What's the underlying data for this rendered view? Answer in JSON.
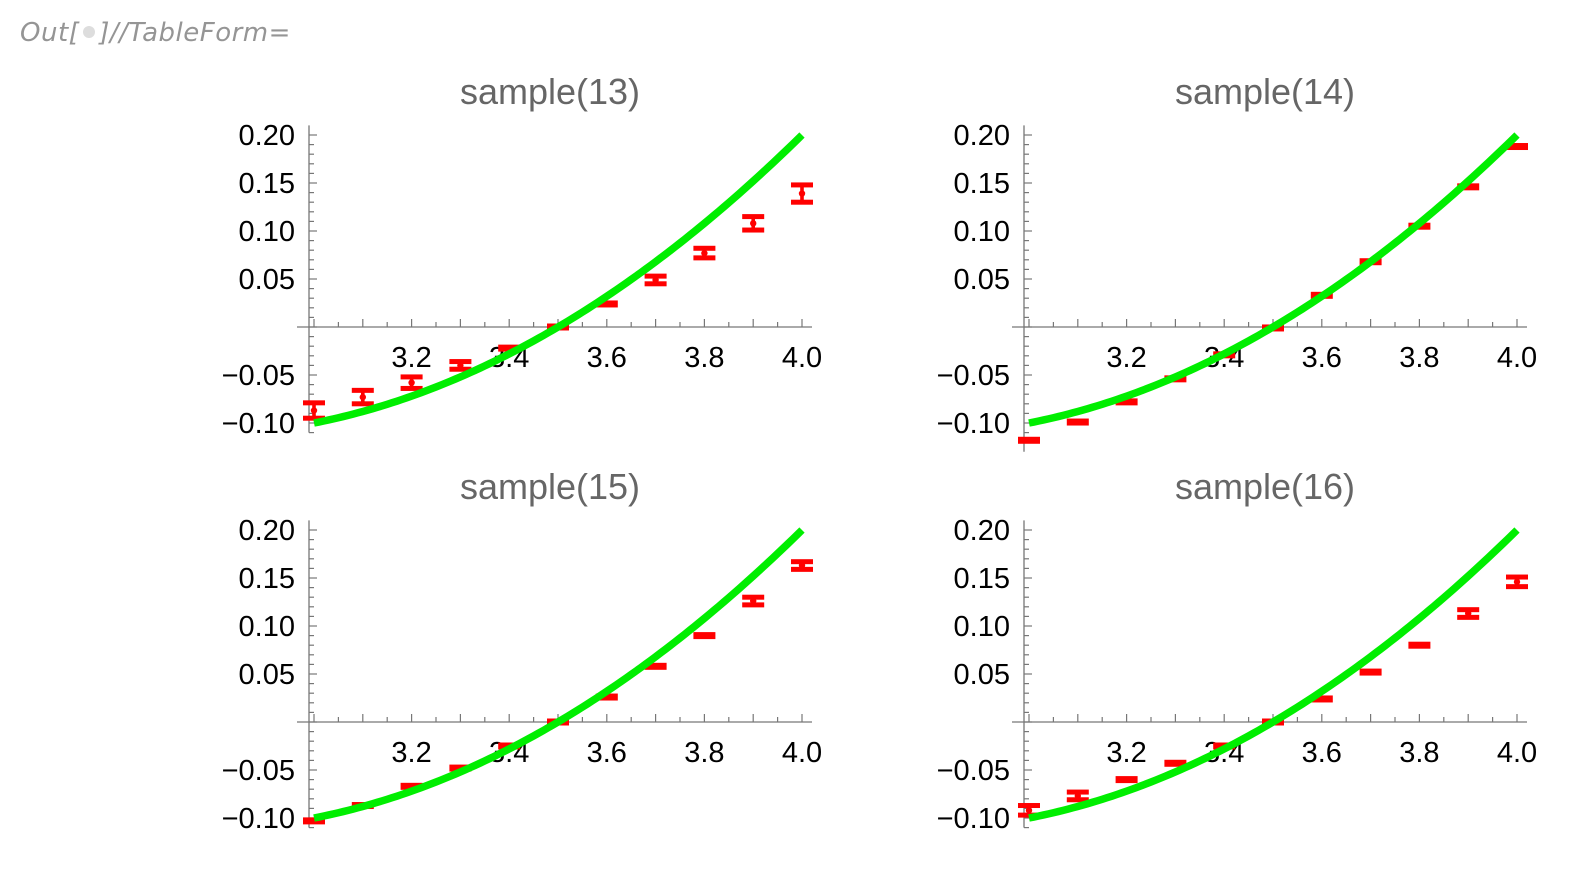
{
  "header": {
    "prefix": "Out[",
    "suffix": "]//TableForm="
  },
  "colors": {
    "fit_curve": "#00ee00",
    "data_points": "#ff0000",
    "axis": "#777777",
    "title": "#666666",
    "label": "#959595"
  },
  "chart_data": [
    {
      "type": "scatter",
      "title": "sample(13)",
      "xlabel": "",
      "ylabel": "",
      "x_ticks": [
        "3.2",
        "3.4",
        "3.6",
        "3.8",
        "4.0"
      ],
      "y_ticks": [
        "0.20",
        "0.15",
        "0.10",
        "0.05",
        "−0.05",
        "−0.10"
      ],
      "xlim": [
        3.0,
        4.0
      ],
      "ylim": [
        -0.11,
        0.21
      ],
      "grid": false,
      "x": [
        3.0,
        3.1,
        3.2,
        3.3,
        3.4,
        3.5,
        3.6,
        3.7,
        3.8,
        3.9,
        4.0
      ],
      "series": [
        {
          "name": "data",
          "style": "errorbar",
          "values": [
            -0.087,
            -0.073,
            -0.058,
            -0.04,
            -0.022,
            0.0,
            0.024,
            0.049,
            0.077,
            0.108,
            0.139
          ],
          "errors": [
            0.008,
            0.007,
            0.006,
            0.004,
            0.003,
            0.002,
            0.003,
            0.004,
            0.005,
            0.007,
            0.009
          ]
        },
        {
          "name": "fit",
          "style": "line",
          "equation": "0.2*(x-3)^2 + 0.1*(x-3) - 0.1",
          "values": [
            -0.1,
            -0.088,
            -0.072,
            -0.052,
            -0.028,
            0.0,
            0.032,
            0.068,
            0.108,
            0.152,
            0.2
          ]
        }
      ]
    },
    {
      "type": "scatter",
      "title": "sample(14)",
      "xlabel": "",
      "ylabel": "",
      "x_ticks": [
        "3.2",
        "3.4",
        "3.6",
        "3.8",
        "4.0"
      ],
      "y_ticks": [
        "0.20",
        "0.15",
        "0.10",
        "0.05",
        "−0.05",
        "−0.10"
      ],
      "xlim": [
        3.0,
        4.0
      ],
      "ylim": [
        -0.13,
        0.21
      ],
      "grid": false,
      "x": [
        3.0,
        3.1,
        3.2,
        3.3,
        3.4,
        3.5,
        3.6,
        3.7,
        3.8,
        3.9,
        4.0
      ],
      "series": [
        {
          "name": "data",
          "style": "errorbar",
          "values": [
            -0.118,
            -0.099,
            -0.078,
            -0.054,
            -0.029,
            -0.001,
            0.033,
            0.068,
            0.105,
            0.146,
            0.188
          ],
          "errors": [
            0.002,
            0.002,
            0.002,
            0.002,
            0.002,
            0.002,
            0.002,
            0.002,
            0.002,
            0.002,
            0.002
          ]
        },
        {
          "name": "fit",
          "style": "line",
          "equation": "0.2*(x-3)^2 + 0.1*(x-3) - 0.1",
          "values": [
            -0.1,
            -0.088,
            -0.072,
            -0.052,
            -0.028,
            0.0,
            0.032,
            0.068,
            0.108,
            0.152,
            0.2
          ]
        }
      ]
    },
    {
      "type": "scatter",
      "title": "sample(15)",
      "xlabel": "",
      "ylabel": "",
      "x_ticks": [
        "3.2",
        "3.4",
        "3.6",
        "3.8",
        "4.0"
      ],
      "y_ticks": [
        "0.20",
        "0.15",
        "0.10",
        "0.05",
        "−0.05",
        "−0.10"
      ],
      "xlim": [
        3.0,
        4.0
      ],
      "ylim": [
        -0.11,
        0.21
      ],
      "grid": false,
      "x": [
        3.0,
        3.1,
        3.2,
        3.3,
        3.4,
        3.5,
        3.6,
        3.7,
        3.8,
        3.9,
        4.0
      ],
      "series": [
        {
          "name": "data",
          "style": "errorbar",
          "values": [
            -0.103,
            -0.087,
            -0.067,
            -0.048,
            -0.025,
            0.0,
            0.026,
            0.058,
            0.09,
            0.126,
            0.163
          ],
          "errors": [
            0.003,
            0.002,
            0.002,
            0.002,
            0.002,
            0.002,
            0.002,
            0.002,
            0.003,
            0.004,
            0.004
          ]
        },
        {
          "name": "fit",
          "style": "line",
          "equation": "0.2*(x-3)^2 + 0.1*(x-3) - 0.1",
          "values": [
            -0.1,
            -0.088,
            -0.072,
            -0.052,
            -0.028,
            0.0,
            0.032,
            0.068,
            0.108,
            0.152,
            0.2
          ]
        }
      ]
    },
    {
      "type": "scatter",
      "title": "sample(16)",
      "xlabel": "",
      "ylabel": "",
      "x_ticks": [
        "3.2",
        "3.4",
        "3.6",
        "3.8",
        "4.0"
      ],
      "y_ticks": [
        "0.20",
        "0.15",
        "0.10",
        "0.05",
        "−0.05",
        "−0.10"
      ],
      "xlim": [
        3.0,
        4.0
      ],
      "ylim": [
        -0.11,
        0.21
      ],
      "grid": false,
      "x": [
        3.0,
        3.1,
        3.2,
        3.3,
        3.4,
        3.5,
        3.6,
        3.7,
        3.8,
        3.9,
        4.0
      ],
      "series": [
        {
          "name": "data",
          "style": "errorbar",
          "values": [
            -0.092,
            -0.077,
            -0.06,
            -0.043,
            -0.025,
            0.0,
            0.024,
            0.052,
            0.08,
            0.113,
            0.146
          ],
          "errors": [
            0.005,
            0.004,
            0.003,
            0.002,
            0.002,
            0.002,
            0.002,
            0.002,
            0.003,
            0.004,
            0.005
          ]
        },
        {
          "name": "fit",
          "style": "line",
          "equation": "0.2*(x-3)^2 + 0.1*(x-3) - 0.1",
          "values": [
            -0.1,
            -0.088,
            -0.072,
            -0.052,
            -0.028,
            0.0,
            0.032,
            0.068,
            0.108,
            0.152,
            0.2
          ]
        }
      ]
    }
  ]
}
